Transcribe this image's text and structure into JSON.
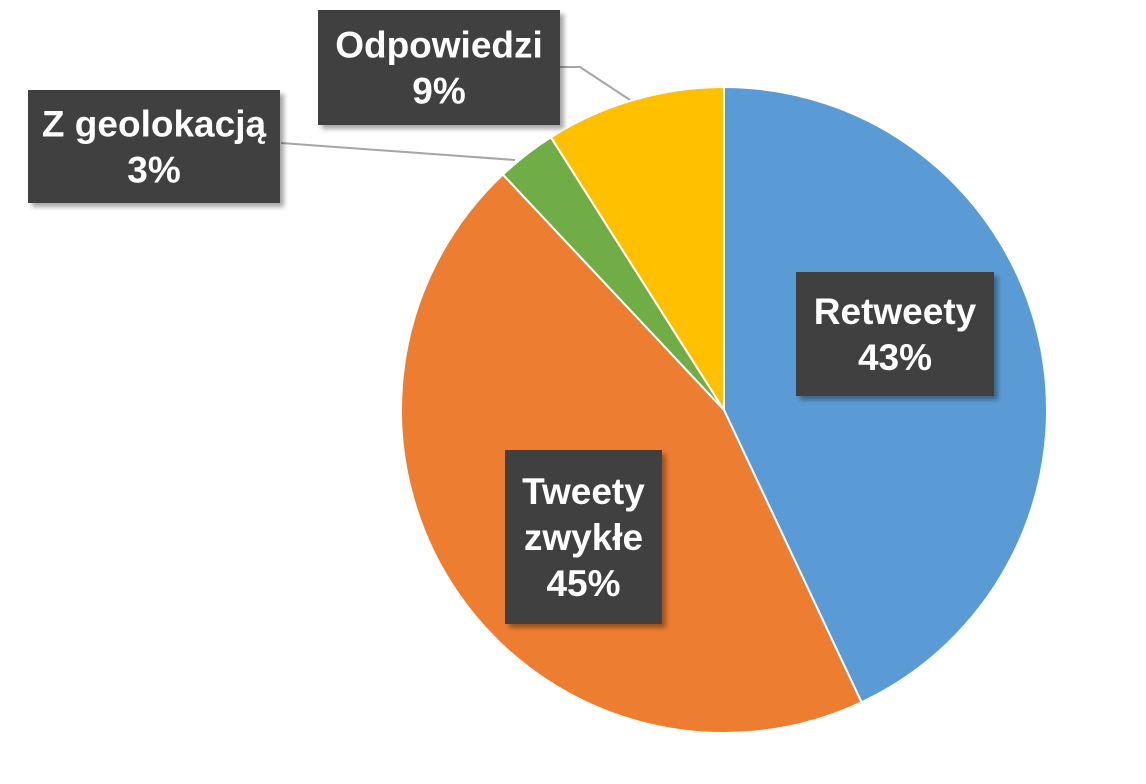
{
  "chart_data": {
    "type": "pie",
    "title": "",
    "start_angle_deg": 0,
    "direction": "clockwise",
    "legend": "none",
    "slices": [
      {
        "name": "Retweety",
        "label_lines": [
          "Retweety"
        ],
        "value": 43,
        "value_label": "43%",
        "color": "#5B9BD5"
      },
      {
        "name": "Tweety zwykłe",
        "label_lines": [
          "Tweety",
          "zwykłe"
        ],
        "value": 45,
        "value_label": "45%",
        "color": "#ED7D31"
      },
      {
        "name": "Z geolokacją",
        "label_lines": [
          "Z geolokacją"
        ],
        "value": 3,
        "value_label": "3%",
        "color": "#70AD47"
      },
      {
        "name": "Odpowiedzi",
        "label_lines": [
          "Odpowiedzi"
        ],
        "value": 9,
        "value_label": "9%",
        "color": "#FFC000"
      }
    ],
    "label_box_color": "#404040",
    "label_text_color": "#FFFFFF",
    "leader_line_color": "#A6A6A6"
  }
}
